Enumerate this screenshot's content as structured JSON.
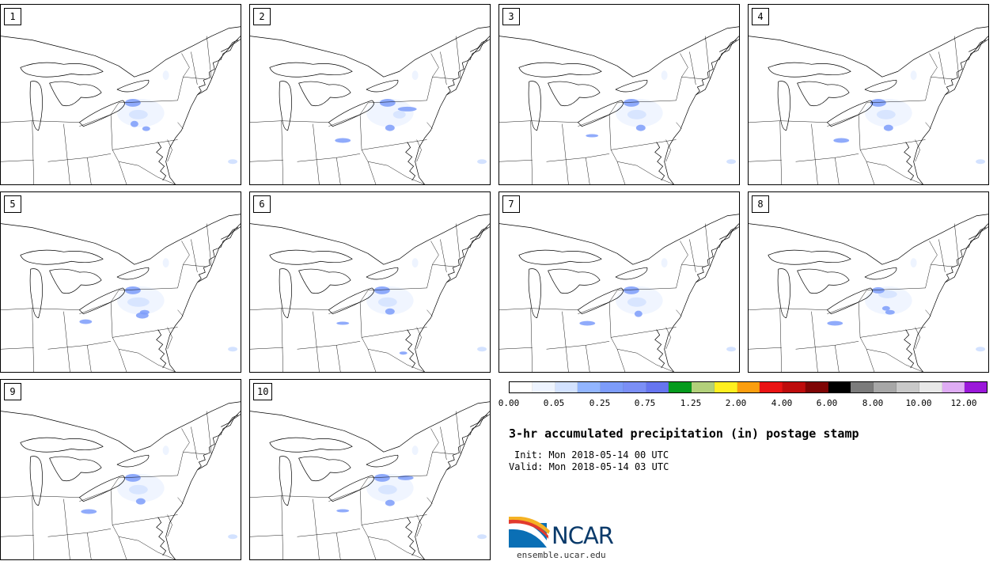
{
  "panels": [
    {
      "label": "1",
      "blobs": [
        [
          175,
          140,
          12,
          6
        ],
        [
          185,
          158,
          5,
          3
        ],
        [
          170,
          152,
          5,
          4
        ],
        [
          168,
          125,
          10,
          5
        ]
      ]
    },
    {
      "label": "2",
      "blobs": [
        [
          190,
          140,
          8,
          5
        ],
        [
          178,
          157,
          6,
          4
        ],
        [
          200,
          133,
          12,
          3
        ],
        [
          118,
          173,
          10,
          3
        ],
        [
          175,
          125,
          10,
          5
        ]
      ]
    },
    {
      "label": "3",
      "blobs": [
        [
          175,
          140,
          12,
          6
        ],
        [
          180,
          157,
          6,
          4
        ],
        [
          118,
          167,
          8,
          2
        ],
        [
          168,
          125,
          10,
          5
        ]
      ]
    },
    {
      "label": "4",
      "blobs": [
        [
          175,
          140,
          12,
          6
        ],
        [
          178,
          157,
          6,
          4
        ],
        [
          118,
          173,
          10,
          3
        ],
        [
          165,
          125,
          10,
          5
        ]
      ]
    },
    {
      "label": "5",
      "blobs": [
        [
          175,
          140,
          14,
          6
        ],
        [
          180,
          157,
          8,
          4
        ],
        [
          183,
          153,
          6,
          3
        ],
        [
          108,
          165,
          8,
          3
        ],
        [
          168,
          125,
          10,
          5
        ]
      ]
    },
    {
      "label": "6",
      "blobs": [
        [
          175,
          140,
          12,
          6
        ],
        [
          178,
          152,
          6,
          4
        ],
        [
          118,
          167,
          8,
          2
        ],
        [
          195,
          205,
          5,
          2
        ],
        [
          168,
          125,
          10,
          5
        ]
      ]
    },
    {
      "label": "7",
      "blobs": [
        [
          175,
          140,
          12,
          6
        ],
        [
          177,
          155,
          5,
          4
        ],
        [
          112,
          167,
          10,
          3
        ],
        [
          168,
          125,
          10,
          5
        ]
      ]
    },
    {
      "label": "8",
      "blobs": [
        [
          177,
          130,
          12,
          5
        ],
        [
          180,
          153,
          6,
          3
        ],
        [
          175,
          148,
          5,
          3
        ],
        [
          110,
          167,
          10,
          3
        ],
        [
          165,
          125,
          8,
          4
        ]
      ]
    },
    {
      "label": "9",
      "blobs": [
        [
          175,
          140,
          12,
          6
        ],
        [
          178,
          155,
          6,
          4
        ],
        [
          112,
          168,
          10,
          3
        ],
        [
          168,
          125,
          10,
          5
        ]
      ]
    },
    {
      "label": "10",
      "blobs": [
        [
          175,
          140,
          12,
          6
        ],
        [
          178,
          157,
          6,
          4
        ],
        [
          118,
          167,
          8,
          2
        ],
        [
          198,
          125,
          10,
          3
        ],
        [
          168,
          125,
          10,
          5
        ]
      ]
    }
  ],
  "colorbar": {
    "colors": [
      "#ffffff",
      "#eef4ff",
      "#d3e2ff",
      "#92b5ff",
      "#7d9cfa",
      "#7b8ff6",
      "#6675f0",
      "#069b1e",
      "#b2d07a",
      "#ffef1f",
      "#fb9e0e",
      "#ea1313",
      "#be0c0c",
      "#7f0505",
      "#000000",
      "#7b7b7b",
      "#a7a7a7",
      "#c9c9c9",
      "#e8e8e8",
      "#dfacf4",
      "#9b18da"
    ],
    "tick_labels": [
      "0.00",
      "0.05",
      "0.25",
      "0.75",
      "1.25",
      "2.00",
      "4.00",
      "6.00",
      "8.00",
      "10.00",
      "12.00"
    ]
  },
  "title": "3-hr accumulated precipitation (in) postage stamp",
  "init": "Init: Mon 2018-05-14 00 UTC",
  "valid": "Valid: Mon 2018-05-14 03 UTC",
  "logo_text": "NCAR",
  "url": "ensemble.ucar.edu"
}
